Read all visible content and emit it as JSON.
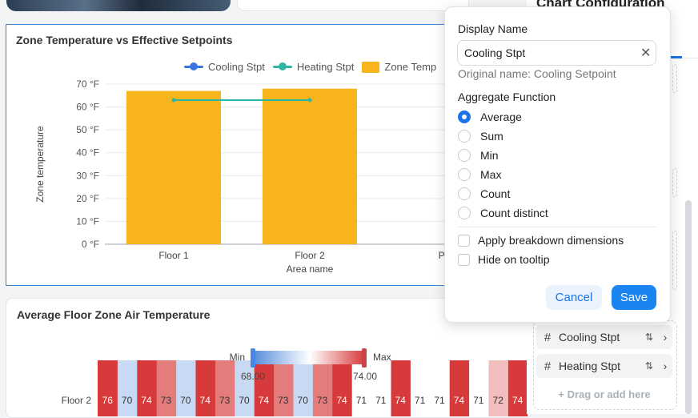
{
  "top_panel": {
    "title": "Chart Configuration"
  },
  "card1": {
    "title": "Zone Temperature vs Effective Setpoints",
    "legend": [
      {
        "label": "Cooling Stpt",
        "color": "#3b73e0",
        "kind": "line"
      },
      {
        "label": "Heating Stpt",
        "color": "#2fb5a4",
        "kind": "line"
      },
      {
        "label": "Zone Temp",
        "color": "#f8b41c",
        "kind": "box"
      }
    ]
  },
  "chart_data": {
    "type": "bar",
    "categories": [
      "Floor 1",
      "Floor 2",
      "Par"
    ],
    "xlabel": "Area name",
    "ylabel": "Zone temperature",
    "ylim": [
      0,
      70
    ],
    "y_ticks": [
      "70 °F",
      "60 °F",
      "50 °F",
      "40 °F",
      "30 °F",
      "20 °F",
      "10 °F",
      "0 °F"
    ],
    "series": [
      {
        "name": "Zone Temp",
        "kind": "bar",
        "color": "#f8b41c",
        "values": [
          67,
          68,
          null
        ]
      },
      {
        "name": "Heating Stpt",
        "kind": "line",
        "color": "#2fb5a4",
        "values": [
          63,
          63,
          null
        ]
      }
    ]
  },
  "card2": {
    "title": "Average Floor Zone Air Temperature",
    "gradient": {
      "min_label": "Min",
      "max_label": "Max",
      "min_value": "68.00",
      "max_value": "74.00"
    },
    "row_label": "Floor 2",
    "cells": [
      76,
      70,
      74,
      73,
      70,
      74,
      73,
      70,
      74,
      73,
      70,
      73,
      74,
      71,
      71,
      74,
      71,
      71,
      74,
      71,
      72,
      74
    ]
  },
  "config_fields": {
    "items": [
      {
        "label": "Cooling Stpt",
        "sort_icon": "⇅",
        "chevron": "›"
      },
      {
        "label": "Heating Stpt",
        "sort_icon": "⇅",
        "chevron": "›"
      }
    ],
    "drag_add": "+ Drag or add here"
  },
  "popover": {
    "display_name_label": "Display Name",
    "display_name_value": "Cooling Stpt",
    "clear_icon": "✕",
    "original_name": "Original name: Cooling Setpoint",
    "aggregate_label": "Aggregate Function",
    "aggregates": [
      {
        "label": "Average",
        "selected": true
      },
      {
        "label": "Sum",
        "selected": false
      },
      {
        "label": "Min",
        "selected": false
      },
      {
        "label": "Max",
        "selected": false
      },
      {
        "label": "Count",
        "selected": false
      },
      {
        "label": "Count distinct",
        "selected": false
      }
    ],
    "checkboxes": [
      {
        "label": "Apply breakdown dimensions",
        "checked": false
      },
      {
        "label": "Hide on tooltip",
        "checked": false
      }
    ],
    "cancel_label": "Cancel",
    "save_label": "Save"
  }
}
